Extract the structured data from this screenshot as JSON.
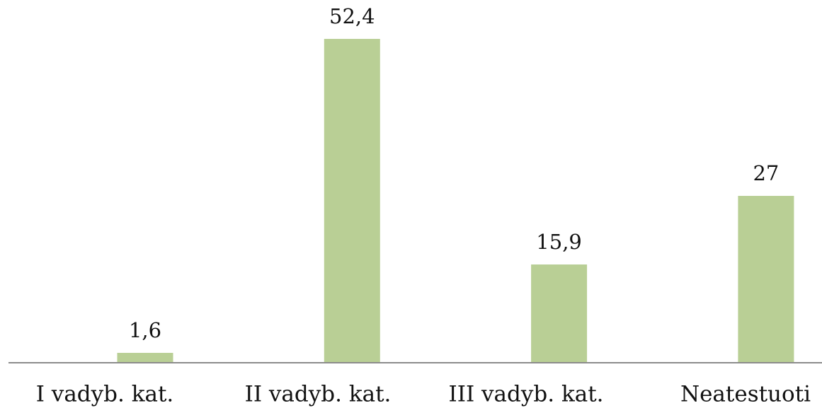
{
  "chart_data": {
    "type": "bar",
    "categories": [
      "I vadyb. kat.",
      "II vadyb. kat.",
      "III vadyb. kat.",
      "Neatestuoti"
    ],
    "values": [
      1.6,
      52.4,
      15.9,
      27
    ],
    "value_labels": [
      "1,6",
      "52,4",
      "15,9",
      "27"
    ],
    "color": "#b9cf95"
  }
}
